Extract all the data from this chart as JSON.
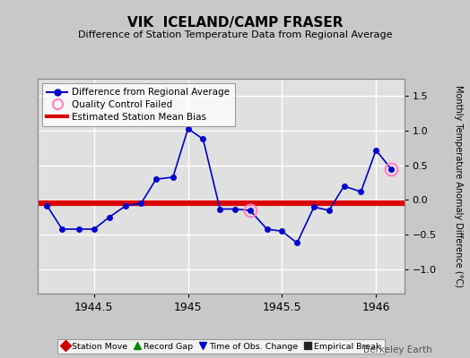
{
  "title": "VIK  ICELAND/CAMP FRASER",
  "subtitle": "Difference of Station Temperature Data from Regional Average",
  "ylabel_right": "Monthly Temperature Anomaly Difference (°C)",
  "xlim": [
    1944.2,
    1946.15
  ],
  "ylim": [
    -1.35,
    1.75
  ],
  "yticks": [
    -1,
    -0.5,
    0,
    0.5,
    1,
    1.5
  ],
  "xtick_vals": [
    1944.5,
    1945.0,
    1945.5,
    1946.0
  ],
  "xtick_labels": [
    "1944.5",
    "1945",
    "1945.5",
    "1946"
  ],
  "bias": -0.04,
  "line_color": "#0000cc",
  "bias_color": "#dd0000",
  "plot_bg": "#e0e0e0",
  "fig_bg": "#c8c8c8",
  "grid_color": "#ffffff",
  "x_data": [
    1944.25,
    1944.33,
    1944.42,
    1944.5,
    1944.58,
    1944.67,
    1944.75,
    1944.83,
    1944.92,
    1945.0,
    1945.08,
    1945.17,
    1945.25,
    1945.33,
    1945.42,
    1945.5,
    1945.58,
    1945.67,
    1945.75,
    1945.83,
    1945.92,
    1946.0,
    1946.08
  ],
  "y_data": [
    -0.08,
    -0.42,
    -0.42,
    -0.42,
    -0.25,
    -0.08,
    -0.05,
    0.3,
    0.33,
    1.03,
    0.88,
    -0.13,
    -0.13,
    -0.15,
    -0.42,
    -0.45,
    -0.62,
    -0.1,
    -0.15,
    0.2,
    0.12,
    0.72,
    0.45
  ],
  "qc_failed_indices": [
    13,
    22
  ],
  "qc_color": "#ff80c0",
  "watermark": "Berkeley Earth",
  "top_legend": [
    {
      "label": "Difference from Regional Average",
      "type": "line",
      "color": "#0000cc",
      "marker": "o"
    },
    {
      "label": "Quality Control Failed",
      "type": "circle_open",
      "color": "#ff80c0"
    },
    {
      "label": "Estimated Station Mean Bias",
      "type": "hline",
      "color": "#dd0000"
    }
  ],
  "bot_legend": [
    {
      "label": "Station Move",
      "color": "#cc0000",
      "marker": "D"
    },
    {
      "label": "Record Gap",
      "color": "#008800",
      "marker": "^"
    },
    {
      "label": "Time of Obs. Change",
      "color": "#0000cc",
      "marker": "v"
    },
    {
      "label": "Empirical Break",
      "color": "#222222",
      "marker": "s"
    }
  ]
}
